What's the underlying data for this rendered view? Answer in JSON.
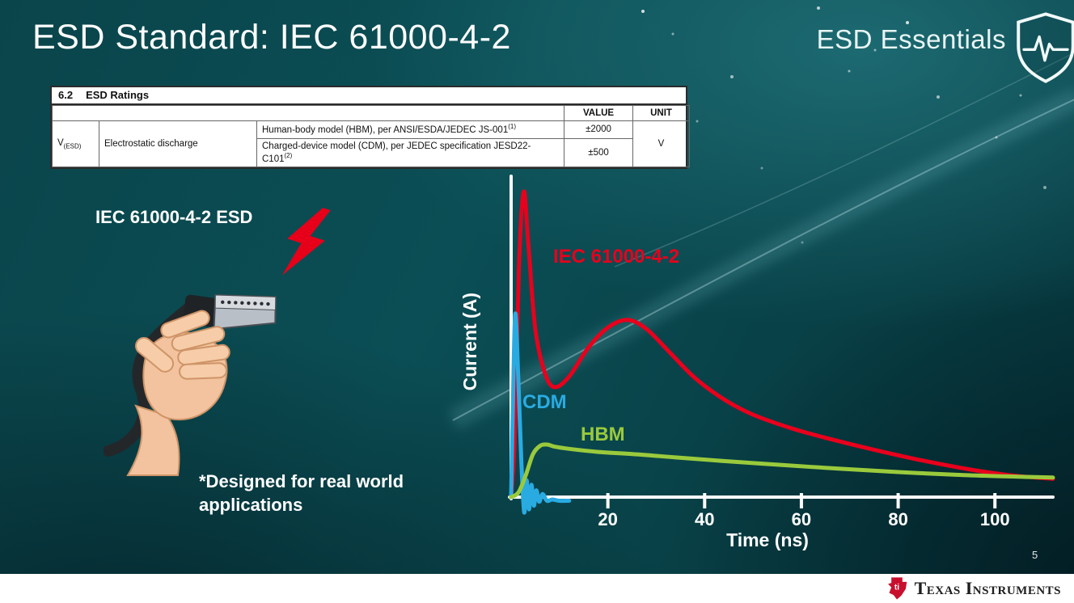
{
  "slide": {
    "title": "ESD Standard: IEC 61000-4-2",
    "brand": "ESD Essentials",
    "page_number": "5",
    "footer_brand": "Texas Instruments"
  },
  "ratings_table": {
    "section_number": "6.2",
    "section_title": "ESD Ratings",
    "col_value": "VALUE",
    "col_unit": "UNIT",
    "param_symbol": "V",
    "param_subscript": "(ESD)",
    "param_name": "Electrostatic discharge",
    "rows": [
      {
        "desc": "Human-body model (HBM), per ANSI/ESDA/JEDEC JS-001",
        "sup": "(1)",
        "value": "±2000"
      },
      {
        "desc": "Charged-device model (CDM), per JEDEC specification JESD22-C101",
        "sup": "(2)",
        "value": "±500"
      }
    ],
    "unit": "V"
  },
  "left_panel": {
    "label": "IEC 61000-4-2 ESD",
    "note": "*Designed for real world applications"
  },
  "chart_data": {
    "type": "line",
    "title": "",
    "xlabel": "Time (ns)",
    "ylabel": "Current (A)",
    "xlim": [
      0,
      112
    ],
    "ylim": [
      -0.06,
      1.04
    ],
    "xticks": [
      20,
      40,
      60,
      80,
      100
    ],
    "grid": false,
    "axis_color": "#ffffff",
    "series": [
      {
        "name": "IEC 61000-4-2",
        "color": "#e8001c",
        "points": [
          [
            0,
            0
          ],
          [
            0.7,
            0.18
          ],
          [
            1.6,
            0.75
          ],
          [
            2.6,
            1.0
          ],
          [
            3.6,
            0.82
          ],
          [
            5,
            0.55
          ],
          [
            7,
            0.405
          ],
          [
            9,
            0.36
          ],
          [
            12,
            0.395
          ],
          [
            16,
            0.49
          ],
          [
            20,
            0.555
          ],
          [
            24,
            0.58
          ],
          [
            28,
            0.55
          ],
          [
            33,
            0.47
          ],
          [
            38,
            0.39
          ],
          [
            44,
            0.32
          ],
          [
            50,
            0.27
          ],
          [
            58,
            0.225
          ],
          [
            66,
            0.19
          ],
          [
            75,
            0.155
          ],
          [
            85,
            0.12
          ],
          [
            95,
            0.09
          ],
          [
            104,
            0.07
          ],
          [
            112,
            0.06
          ]
        ]
      },
      {
        "name": "CDM",
        "color": "#29abe2",
        "points": [
          [
            0,
            0
          ],
          [
            0.35,
            0.28
          ],
          [
            0.85,
            0.6
          ],
          [
            1.5,
            0.38
          ],
          [
            2.1,
            0.12
          ],
          [
            2.7,
            -0.05
          ],
          [
            3.2,
            0.055
          ],
          [
            3.7,
            -0.04
          ],
          [
            4.2,
            0.04
          ],
          [
            4.7,
            -0.028
          ],
          [
            5.2,
            0.022
          ],
          [
            5.8,
            -0.015
          ],
          [
            6.5,
            0.01
          ],
          [
            7.4,
            -0.012
          ],
          [
            8.5,
            -0.008
          ],
          [
            10,
            -0.012
          ],
          [
            12,
            -0.012
          ]
        ]
      },
      {
        "name": "HBM",
        "color": "#9aca3c",
        "points": [
          [
            0,
            0
          ],
          [
            1.5,
            0.015
          ],
          [
            3,
            0.07
          ],
          [
            4.5,
            0.14
          ],
          [
            6,
            0.168
          ],
          [
            7.5,
            0.172
          ],
          [
            9,
            0.165
          ],
          [
            12,
            0.158
          ],
          [
            18,
            0.148
          ],
          [
            26,
            0.14
          ],
          [
            34,
            0.13
          ],
          [
            44,
            0.118
          ],
          [
            56,
            0.105
          ],
          [
            68,
            0.093
          ],
          [
            80,
            0.082
          ],
          [
            92,
            0.073
          ],
          [
            102,
            0.068
          ],
          [
            112,
            0.064
          ]
        ]
      }
    ],
    "series_labels": [
      {
        "text": "IEC 61000-4-2",
        "color": "#e8001c"
      },
      {
        "text": "CDM",
        "color": "#29abe2"
      },
      {
        "text": "HBM",
        "color": "#9aca3c"
      }
    ]
  }
}
